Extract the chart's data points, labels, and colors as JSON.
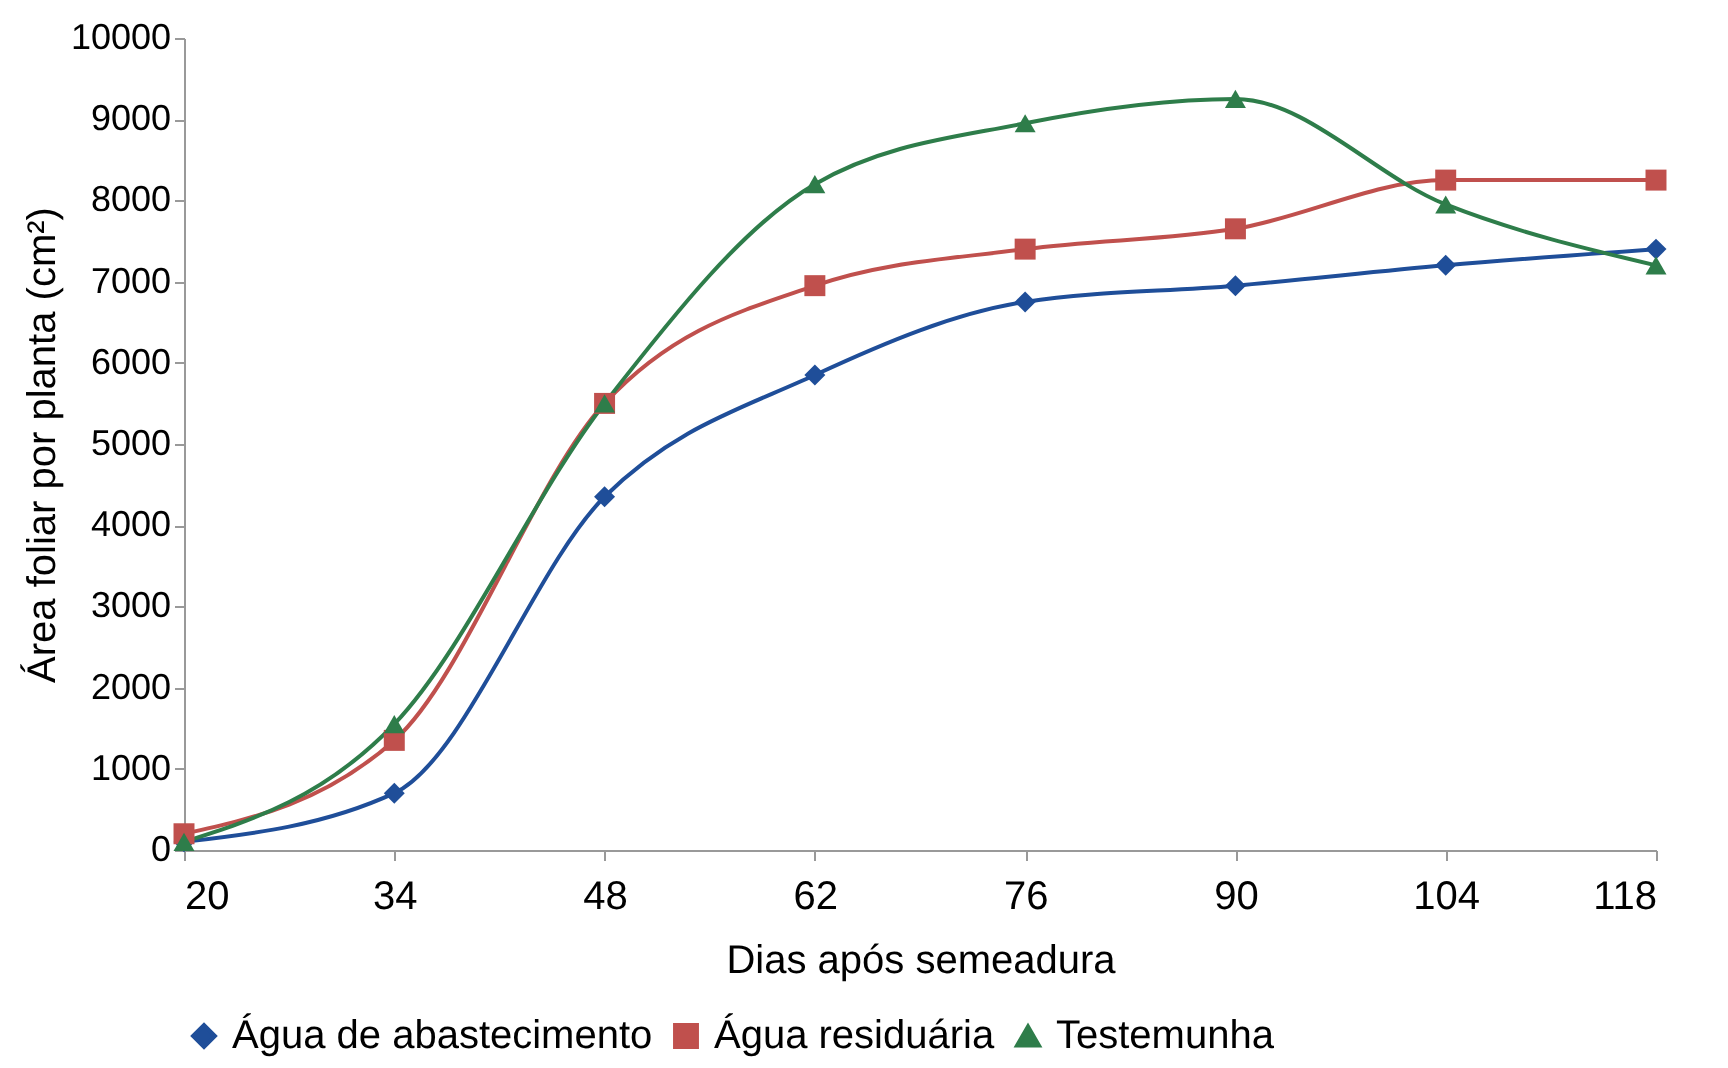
{
  "chart_data": {
    "type": "line",
    "xlabel": "Dias após semeadura",
    "ylabel": "Área foliar por planta (cm²)",
    "x": [
      20,
      34,
      48,
      62,
      76,
      90,
      104,
      118
    ],
    "xlim": [
      20,
      118
    ],
    "xticks": [
      20,
      34,
      48,
      62,
      76,
      90,
      104,
      118
    ],
    "ylim": [
      0,
      10000
    ],
    "yticks": [
      0,
      1000,
      2000,
      3000,
      4000,
      5000,
      6000,
      7000,
      8000,
      9000,
      10000
    ],
    "grid": false,
    "legend": "bottom",
    "series": [
      {
        "name": "Água de abastecimento",
        "color": "#1f4e99",
        "marker": "diamond",
        "values": [
          100,
          700,
          4350,
          5850,
          6750,
          6950,
          7200,
          7400
        ]
      },
      {
        "name": "Água residuária",
        "color": "#c0504d",
        "marker": "square",
        "values": [
          200,
          1350,
          5500,
          6950,
          7400,
          7650,
          8250,
          8250
        ]
      },
      {
        "name": "Testemunha",
        "color": "#2e7d4a",
        "marker": "triangle",
        "values": [
          100,
          1550,
          5500,
          8200,
          8950,
          9250,
          7950,
          7200
        ]
      }
    ]
  }
}
